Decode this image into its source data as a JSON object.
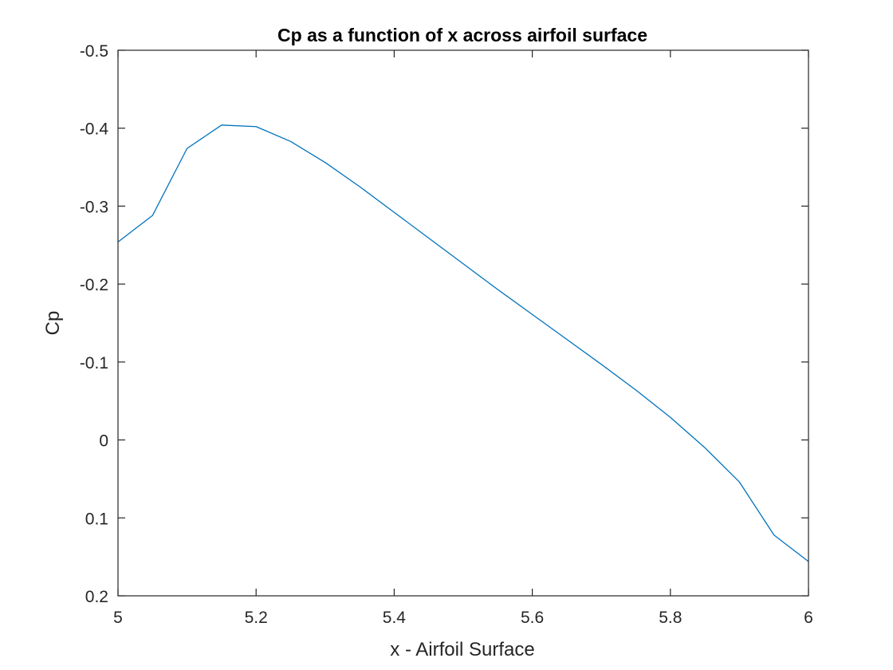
{
  "chart_data": {
    "type": "line",
    "title": "Cp as a function of x across airfoil surface",
    "xlabel": "x - Airfoil Surface",
    "ylabel": "Cp",
    "xlim": [
      5,
      6
    ],
    "ylim": [
      -0.5,
      0.2
    ],
    "y_axis_reversed": true,
    "grid": false,
    "xticks": [
      5,
      5.2,
      5.4,
      5.6,
      5.8,
      6
    ],
    "xtick_labels": [
      "5",
      "5.2",
      "5.4",
      "5.6",
      "5.8",
      "6"
    ],
    "yticks": [
      -0.5,
      -0.4,
      -0.3,
      -0.2,
      -0.1,
      0,
      0.1,
      0.2
    ],
    "ytick_labels": [
      "-0.5",
      "-0.4",
      "-0.3",
      "-0.2",
      "-0.1",
      "0",
      "0.1",
      "0.2"
    ],
    "series": [
      {
        "color": "#0072BD",
        "x": [
          5.0,
          5.05,
          5.1,
          5.15,
          5.2,
          5.25,
          5.3,
          5.35,
          5.4,
          5.45,
          5.5,
          5.55,
          5.6,
          5.65,
          5.7,
          5.75,
          5.8,
          5.85,
          5.9,
          5.95,
          6.0
        ],
        "y": [
          -0.254,
          -0.288,
          -0.374,
          -0.404,
          -0.402,
          -0.383,
          -0.356,
          -0.325,
          -0.292,
          -0.259,
          -0.226,
          -0.193,
          -0.161,
          -0.129,
          -0.097,
          -0.064,
          -0.029,
          0.01,
          0.054,
          0.122,
          0.156
        ]
      }
    ]
  }
}
